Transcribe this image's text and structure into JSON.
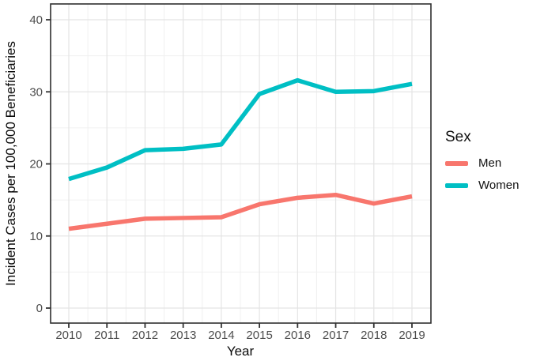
{
  "chart_data": {
    "type": "line",
    "title": "",
    "xlabel": "Year",
    "ylabel": "Incident Cases per 100,000 Beneficiaries",
    "x": [
      2010,
      2011,
      2012,
      2013,
      2014,
      2015,
      2016,
      2017,
      2018,
      2019
    ],
    "series": [
      {
        "name": "Men",
        "color": "#F8766D",
        "values": [
          11.0,
          11.7,
          12.4,
          12.5,
          12.6,
          14.4,
          15.3,
          15.7,
          14.5,
          15.5
        ]
      },
      {
        "name": "Women",
        "color": "#00BFC4",
        "values": [
          17.9,
          19.5,
          21.9,
          22.1,
          22.7,
          29.7,
          31.6,
          30.0,
          30.1,
          31.1
        ]
      }
    ],
    "ylim": [
      0,
      40
    ],
    "yticks": [
      0,
      10,
      20,
      30,
      40
    ],
    "grid": true,
    "legend_title": "Sex",
    "legend_position": "right",
    "legend_items": [
      "Men",
      "Women"
    ]
  },
  "colors": {
    "men": "#F8766D",
    "women": "#00BFC4",
    "grid_major": "#e4e4e4",
    "grid_minor": "#f0f0f0",
    "panel_border": "#2e2e2e",
    "tick_mark": "#333333",
    "tick_text": "#4d4d4d",
    "background": "#ffffff"
  }
}
